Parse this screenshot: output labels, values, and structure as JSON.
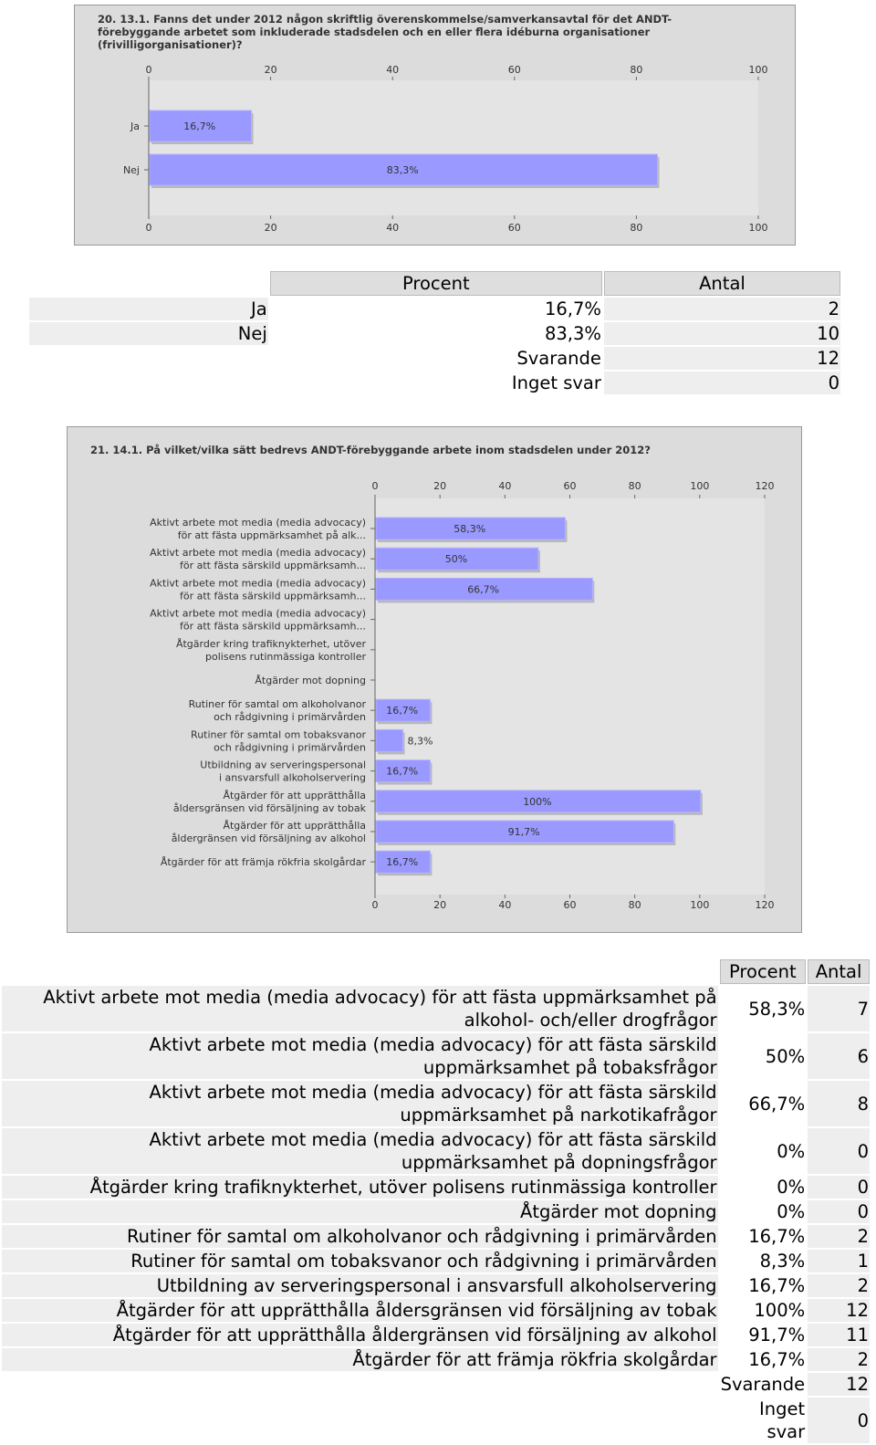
{
  "chart_data": [
    {
      "type": "bar",
      "orientation": "horizontal",
      "title": "20. 13.1. Fanns det under 2012 någon skriftlig överenskommelse/samverkansavtal för det ANDT-förebyggande arbetet som inkluderade stadsdelen och en eller flera idéburna organisationer (frivilligorganisationer)?",
      "categories": [
        [
          "Ja"
        ],
        [
          "Nej"
        ]
      ],
      "values": [
        16.7,
        83.3
      ],
      "value_labels": [
        "16,7%",
        "83,3%"
      ],
      "color": "#9999ff",
      "xlim": [
        0,
        100
      ],
      "xticks": [
        0,
        20,
        40,
        60,
        80,
        100
      ]
    },
    {
      "type": "bar",
      "orientation": "horizontal",
      "title": "21. 14.1. På vilket/vilka sätt bedrevs ANDT-förebyggande arbete inom stadsdelen under 2012?",
      "categories": [
        [
          "Aktivt arbete mot media (media advocacy)",
          "för att fästa uppmärksamhet på alk..."
        ],
        [
          "Aktivt arbete mot media (media advocacy)",
          "för att fästa särskild uppmärksamh..."
        ],
        [
          "Aktivt arbete mot media (media advocacy)",
          "för att fästa särskild uppmärksamh..."
        ],
        [
          "Aktivt arbete mot media (media advocacy)",
          "för att fästa särskild uppmärksamh..."
        ],
        [
          "Åtgärder kring trafiknykterhet, utöver",
          "polisens rutinmässiga kontroller"
        ],
        [
          "Åtgärder mot dopning"
        ],
        [
          "Rutiner för samtal om alkoholvanor",
          "och rådgivning i primärvården"
        ],
        [
          "Rutiner för samtal om tobaksvanor",
          "och rådgivning i primärvården"
        ],
        [
          "Utbildning av serveringspersonal",
          "i ansvarsfull alkoholservering"
        ],
        [
          "Åtgärder för att upprätthålla",
          "åldersgränsen vid försäljning av tobak"
        ],
        [
          "Åtgärder för att upprätthålla",
          "åldergränsen vid försäljning av alkohol"
        ],
        [
          "Åtgärder för att främja rökfria skolgårdar"
        ]
      ],
      "values": [
        58.3,
        50,
        66.7,
        0,
        0,
        0,
        16.7,
        8.3,
        16.7,
        100,
        91.7,
        16.7
      ],
      "value_labels": [
        "58,3%",
        "50%",
        "66,7%",
        null,
        null,
        null,
        "16,7%",
        "8,3%",
        "16,7%",
        "100%",
        "91,7%",
        "16,7%"
      ],
      "color": "#9999ff",
      "xlim": [
        0,
        120
      ],
      "xticks": [
        0,
        20,
        40,
        60,
        80,
        100,
        120
      ]
    }
  ],
  "tables": [
    {
      "header": [
        "Procent",
        "Antal"
      ],
      "rows": [
        [
          "Ja",
          "16,7%",
          "2"
        ],
        [
          "Nej",
          "83,3%",
          "10"
        ]
      ],
      "summary": [
        [
          "Svarande",
          "12"
        ],
        [
          "Inget svar",
          "0"
        ]
      ]
    },
    {
      "header": [
        "Procent",
        "Antal"
      ],
      "rows": [
        [
          "Aktivt arbete mot media (media advocacy) för att fästa uppmärksamhet på alkohol- och/eller drogfrågor",
          "58,3%",
          "7"
        ],
        [
          "Aktivt arbete mot media (media advocacy) för att fästa särskild uppmärksamhet på tobaksfrågor",
          "50%",
          "6"
        ],
        [
          "Aktivt arbete mot media (media advocacy) för att fästa särskild uppmärksamhet på narkotikafrågor",
          "66,7%",
          "8"
        ],
        [
          "Aktivt arbete mot media (media advocacy) för att fästa särskild uppmärksamhet på dopningsfrågor",
          "0%",
          "0"
        ],
        [
          "Åtgärder kring trafiknykterhet, utöver polisens rutinmässiga kontroller",
          "0%",
          "0"
        ],
        [
          "Åtgärder mot dopning",
          "0%",
          "0"
        ],
        [
          "Rutiner för samtal om alkoholvanor och rådgivning i primärvården",
          "16,7%",
          "2"
        ],
        [
          "Rutiner för samtal om tobaksvanor och rådgivning i primärvården",
          "8,3%",
          "1"
        ],
        [
          "Utbildning av serveringspersonal i ansvarsfull alkoholservering",
          "16,7%",
          "2"
        ],
        [
          "Åtgärder för att upprätthålla åldersgränsen vid försäljning av tobak",
          "100%",
          "12"
        ],
        [
          "Åtgärder för att upprätthålla åldergränsen vid försäljning av alkohol",
          "91,7%",
          "11"
        ],
        [
          "Åtgärder för att främja rökfria skolgårdar",
          "16,7%",
          "2"
        ]
      ],
      "summary": [
        [
          "Svarande",
          "12"
        ],
        [
          "Inget svar",
          "0"
        ]
      ]
    }
  ]
}
